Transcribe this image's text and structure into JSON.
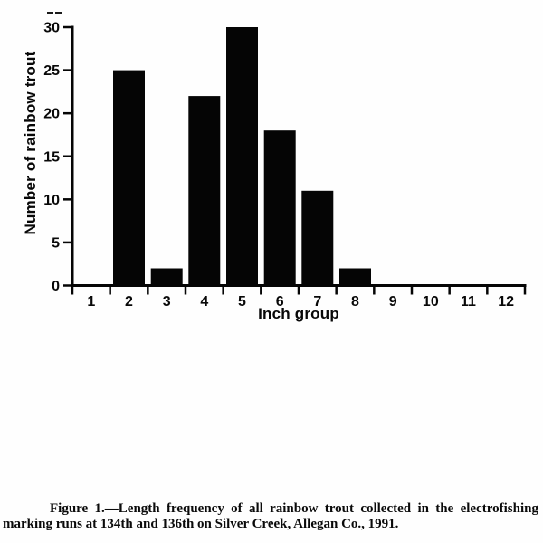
{
  "chart_data": {
    "type": "bar",
    "title": "",
    "xlabel": "Inch group",
    "ylabel": "Number of rainbow trout",
    "categories": [
      "1",
      "2",
      "3",
      "4",
      "5",
      "6",
      "7",
      "8",
      "9",
      "10",
      "11",
      "12"
    ],
    "values": [
      0,
      25,
      2,
      22,
      30,
      18,
      11,
      2,
      0,
      0,
      0,
      0
    ],
    "ylim": [
      0,
      30
    ],
    "yticks": [
      0,
      5,
      10,
      15,
      20,
      25,
      30
    ],
    "bar_color": "#050505",
    "axis_color": "#050505",
    "grid": false,
    "legend": "none"
  },
  "caption": {
    "line1": "Figure 1.—Length frequency of all rainbow trout collected in the electrofishing",
    "line2": "marking runs at 134th and 136th on Silver Creek, Allegan Co., 1991."
  }
}
